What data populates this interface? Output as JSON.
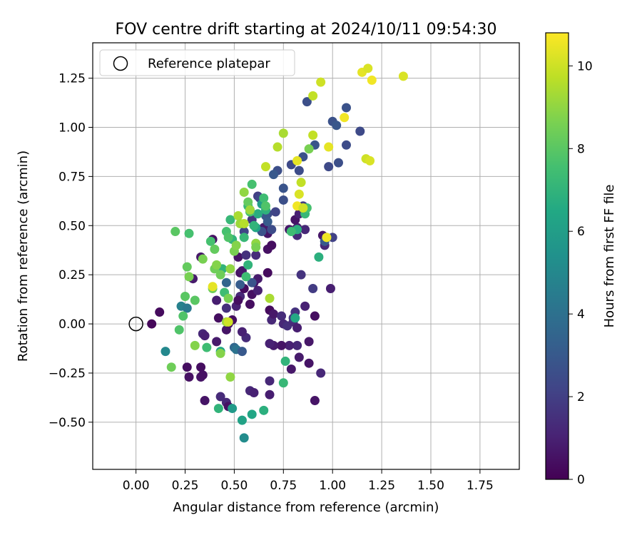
{
  "chart_data": {
    "type": "scatter",
    "title": "FOV centre drift starting at 2024/10/11 09:54:30",
    "xlabel": "Angular distance from reference (arcmin)",
    "ylabel": "Rotation from reference (arcmin)",
    "xlim": [
      -0.22,
      1.95
    ],
    "ylim": [
      -0.74,
      1.43
    ],
    "xticks": [
      "0.00",
      "0.25",
      "0.50",
      "0.75",
      "1.00",
      "1.25",
      "1.50",
      "1.75"
    ],
    "yticks": [
      "−0.50",
      "−0.25",
      "0.00",
      "0.25",
      "0.50",
      "0.75",
      "1.00",
      "1.25"
    ],
    "grid": true,
    "legend": {
      "placement": "top-left",
      "label": "Reference platepar"
    },
    "reference_point": {
      "x": 0.0,
      "y": 0.0
    },
    "colorbar": {
      "label": "Hours from first FF file",
      "range": [
        0,
        10.8
      ],
      "ticks": [
        "0",
        "2",
        "4",
        "6",
        "8",
        "10"
      ]
    },
    "points": [
      [
        0.08,
        0.0,
        0.2
      ],
      [
        0.12,
        0.06,
        0.3
      ],
      [
        0.26,
        -0.22,
        0.4
      ],
      [
        0.27,
        -0.27,
        0.5
      ],
      [
        0.33,
        -0.22,
        0.4
      ],
      [
        0.33,
        -0.27,
        0.6
      ],
      [
        0.34,
        -0.26,
        0.5
      ],
      [
        0.35,
        -0.39,
        0.6
      ],
      [
        0.34,
        -0.05,
        1.2
      ],
      [
        0.35,
        -0.06,
        1.0
      ],
      [
        0.33,
        0.34,
        0.7
      ],
      [
        0.29,
        0.23,
        0.8
      ],
      [
        0.39,
        0.43,
        0.5
      ],
      [
        0.41,
        0.12,
        0.9
      ],
      [
        0.41,
        -0.09,
        0.8
      ],
      [
        0.43,
        -0.37,
        1.3
      ],
      [
        0.46,
        -0.4,
        1.2
      ],
      [
        0.47,
        -0.42,
        0.5
      ],
      [
        0.42,
        0.03,
        0.4
      ],
      [
        0.46,
        0.08,
        1.5
      ],
      [
        0.46,
        -0.03,
        0.6
      ],
      [
        0.47,
        0.0,
        0.5
      ],
      [
        0.49,
        0.02,
        0.4
      ],
      [
        0.51,
        0.09,
        1.0
      ],
      [
        0.53,
        0.14,
        1.2
      ],
      [
        0.53,
        0.26,
        0.5
      ],
      [
        0.52,
        0.34,
        0.6
      ],
      [
        0.52,
        0.12,
        0.4
      ],
      [
        0.54,
        0.27,
        0.7
      ],
      [
        0.55,
        0.18,
        0.3
      ],
      [
        0.56,
        0.35,
        1.5
      ],
      [
        0.56,
        -0.07,
        1.3
      ],
      [
        0.54,
        -0.04,
        1.0
      ],
      [
        0.58,
        -0.34,
        1.2
      ],
      [
        0.6,
        -0.35,
        1.0
      ],
      [
        0.58,
        0.1,
        0.4
      ],
      [
        0.59,
        0.15,
        0.5
      ],
      [
        0.6,
        0.21,
        0.6
      ],
      [
        0.62,
        0.23,
        0.8
      ],
      [
        0.62,
        0.17,
        1.0
      ],
      [
        0.61,
        0.35,
        1.4
      ],
      [
        0.65,
        0.49,
        0.8
      ],
      [
        0.67,
        0.38,
        0.5
      ],
      [
        0.67,
        0.46,
        0.6
      ],
      [
        0.67,
        0.26,
        0.3
      ],
      [
        0.69,
        0.4,
        0.4
      ],
      [
        0.68,
        0.07,
        0.3
      ],
      [
        0.69,
        0.02,
        1.2
      ],
      [
        0.7,
        0.05,
        0.7
      ],
      [
        0.74,
        0.04,
        1.4
      ],
      [
        0.75,
        0.0,
        1.2
      ],
      [
        0.77,
        -0.01,
        1.5
      ],
      [
        0.8,
        0.01,
        1.3
      ],
      [
        0.81,
        0.06,
        1.6
      ],
      [
        0.8,
        0.03,
        1.8
      ],
      [
        0.82,
        -0.02,
        0.9
      ],
      [
        0.82,
        -0.11,
        1.2
      ],
      [
        0.83,
        -0.17,
        0.8
      ],
      [
        0.79,
        -0.23,
        0.7
      ],
      [
        0.78,
        -0.11,
        1.0
      ],
      [
        0.74,
        -0.11,
        0.6
      ],
      [
        0.7,
        -0.11,
        0.8
      ],
      [
        0.68,
        -0.1,
        1.0
      ],
      [
        0.68,
        -0.29,
        1.2
      ],
      [
        0.68,
        -0.36,
        0.9
      ],
      [
        0.86,
        0.09,
        1.0
      ],
      [
        0.86,
        0.48,
        1.2
      ],
      [
        0.84,
        0.25,
        1.6
      ],
      [
        0.9,
        0.18,
        1.9
      ],
      [
        0.95,
        0.45,
        0.7
      ],
      [
        0.96,
        0.4,
        1.2
      ],
      [
        0.99,
        0.18,
        0.9
      ],
      [
        0.91,
        0.04,
        0.4
      ],
      [
        0.88,
        -0.09,
        0.7
      ],
      [
        0.88,
        -0.2,
        0.6
      ],
      [
        0.94,
        -0.25,
        1.2
      ],
      [
        0.91,
        -0.39,
        0.6
      ],
      [
        0.78,
        0.48,
        0.7
      ],
      [
        0.82,
        0.49,
        0.9
      ],
      [
        0.82,
        0.45,
        1.3
      ],
      [
        0.81,
        0.53,
        0.6
      ],
      [
        0.83,
        0.56,
        1.0
      ],
      [
        0.85,
        0.6,
        2.0
      ],
      [
        0.79,
        0.81,
        2.4
      ],
      [
        0.83,
        0.78,
        2.5
      ],
      [
        0.85,
        0.85,
        2.7
      ],
      [
        0.87,
        1.13,
        2.6
      ],
      [
        0.91,
        0.91,
        2.8
      ],
      [
        0.98,
        0.8,
        2.4
      ],
      [
        1.0,
        0.44,
        2.1
      ],
      [
        0.96,
        0.42,
        3.0
      ],
      [
        1.0,
        1.03,
        2.7
      ],
      [
        1.02,
        1.01,
        2.9
      ],
      [
        1.03,
        0.82,
        2.6
      ],
      [
        1.07,
        0.91,
        2.5
      ],
      [
        1.07,
        1.1,
        2.7
      ],
      [
        1.14,
        0.98,
        2.4
      ],
      [
        0.72,
        0.78,
        2.6
      ],
      [
        0.7,
        0.76,
        3.0
      ],
      [
        0.75,
        0.69,
        2.8
      ],
      [
        0.75,
        0.63,
        2.6
      ],
      [
        0.71,
        0.57,
        2.2
      ],
      [
        0.67,
        0.56,
        2.4
      ],
      [
        0.66,
        0.55,
        2.9
      ],
      [
        0.67,
        0.52,
        3.1
      ],
      [
        0.64,
        0.47,
        2.7
      ],
      [
        0.69,
        0.48,
        2.5
      ],
      [
        0.62,
        0.65,
        2.0
      ],
      [
        0.63,
        0.64,
        2.3
      ],
      [
        0.58,
        0.58,
        1.9
      ],
      [
        0.55,
        0.47,
        2.2
      ],
      [
        0.59,
        0.53,
        1.7
      ],
      [
        0.46,
        0.21,
        3.5
      ],
      [
        0.53,
        0.2,
        3.1
      ],
      [
        0.59,
        0.21,
        2.8
      ],
      [
        0.5,
        -0.12,
        3.6
      ],
      [
        0.51,
        -0.13,
        4.1
      ],
      [
        0.54,
        -0.14,
        3.0
      ],
      [
        0.23,
        0.09,
        4.7
      ],
      [
        0.26,
        0.08,
        4.3
      ],
      [
        0.15,
        -0.14,
        5.0
      ],
      [
        0.43,
        -0.14,
        6.4
      ],
      [
        0.49,
        -0.43,
        5.8
      ],
      [
        0.54,
        -0.49,
        6.2
      ],
      [
        0.55,
        -0.58,
        5.2
      ],
      [
        0.59,
        -0.46,
        6.4
      ],
      [
        0.65,
        -0.44,
        6.8
      ],
      [
        0.75,
        -0.3,
        7.2
      ],
      [
        0.76,
        -0.19,
        7.0
      ],
      [
        0.81,
        0.03,
        6.5
      ],
      [
        0.93,
        0.34,
        6.8
      ],
      [
        0.97,
        0.44,
        6.2
      ],
      [
        0.82,
        0.48,
        6.8
      ],
      [
        0.86,
        0.56,
        7.2
      ],
      [
        0.87,
        0.59,
        7.6
      ],
      [
        0.79,
        0.47,
        7.4
      ],
      [
        0.61,
        0.49,
        6.3
      ],
      [
        0.6,
        0.5,
        7.0
      ],
      [
        0.62,
        0.56,
        6.7
      ],
      [
        0.64,
        0.61,
        6.0
      ],
      [
        0.66,
        0.58,
        6.9
      ],
      [
        0.65,
        0.64,
        7.4
      ],
      [
        0.66,
        0.6,
        7.8
      ],
      [
        0.58,
        0.57,
        7.6
      ],
      [
        0.57,
        0.6,
        7.2
      ],
      [
        0.59,
        0.71,
        7.6
      ],
      [
        0.57,
        0.62,
        8.2
      ],
      [
        0.55,
        0.44,
        7.2
      ],
      [
        0.57,
        0.3,
        7.0
      ],
      [
        0.56,
        0.24,
        7.4
      ],
      [
        0.49,
        0.43,
        7.0
      ],
      [
        0.48,
        0.53,
        7.2
      ],
      [
        0.46,
        0.47,
        7.6
      ],
      [
        0.47,
        0.44,
        7.8
      ],
      [
        0.45,
        0.16,
        7.4
      ],
      [
        0.44,
        0.28,
        7.0
      ],
      [
        0.38,
        0.42,
        7.6
      ],
      [
        0.4,
        0.38,
        8.2
      ],
      [
        0.36,
        -0.12,
        7.4
      ],
      [
        0.42,
        -0.43,
        7.0
      ],
      [
        0.22,
        -0.03,
        7.8
      ],
      [
        0.2,
        0.47,
        8.0
      ],
      [
        0.27,
        0.46,
        7.6
      ],
      [
        0.24,
        0.04,
        7.8
      ],
      [
        0.25,
        0.14,
        8.0
      ],
      [
        0.3,
        0.12,
        8.0
      ],
      [
        0.26,
        0.29,
        8.2
      ],
      [
        0.27,
        0.24,
        8.6
      ],
      [
        0.34,
        0.33,
        8.6
      ],
      [
        0.39,
        0.18,
        8.4
      ],
      [
        0.4,
        0.28,
        8.4
      ],
      [
        0.41,
        0.3,
        8.8
      ],
      [
        0.43,
        0.25,
        8.4
      ],
      [
        0.43,
        -0.15,
        8.8
      ],
      [
        0.3,
        -0.11,
        8.8
      ],
      [
        0.18,
        -0.22,
        8.4
      ],
      [
        0.46,
        0.01,
        9.2
      ],
      [
        0.48,
        -0.27,
        9.0
      ],
      [
        0.47,
        0.13,
        8.6
      ],
      [
        0.48,
        0.28,
        9.0
      ],
      [
        0.5,
        0.37,
        8.6
      ],
      [
        0.51,
        0.4,
        8.8
      ],
      [
        0.52,
        0.55,
        9.4
      ],
      [
        0.53,
        0.51,
        9.2
      ],
      [
        0.55,
        0.51,
        9.6
      ],
      [
        0.55,
        0.67,
        9.0
      ],
      [
        0.58,
        0.58,
        9.2
      ],
      [
        0.61,
        0.41,
        9.0
      ],
      [
        0.61,
        0.39,
        8.6
      ],
      [
        0.68,
        0.13,
        9.4
      ],
      [
        0.66,
        0.8,
        9.8
      ],
      [
        0.72,
        0.9,
        9.6
      ],
      [
        0.75,
        0.97,
        9.4
      ],
      [
        0.82,
        0.83,
        10.4
      ],
      [
        0.83,
        0.66,
        10.2
      ],
      [
        0.84,
        0.72,
        9.8
      ],
      [
        0.82,
        0.6,
        10.6
      ],
      [
        0.85,
        0.59,
        10.0
      ],
      [
        0.88,
        0.89,
        8.6
      ],
      [
        0.9,
        0.96,
        9.8
      ],
      [
        0.9,
        1.16,
        9.8
      ],
      [
        0.94,
        1.23,
        10.0
      ],
      [
        0.97,
        0.44,
        10.6
      ],
      [
        0.98,
        0.9,
        10.4
      ],
      [
        1.06,
        1.05,
        10.6
      ],
      [
        1.15,
        1.28,
        10.4
      ],
      [
        1.18,
        1.3,
        10.2
      ],
      [
        1.2,
        1.24,
        10.6
      ],
      [
        1.17,
        0.84,
        10.0
      ],
      [
        1.19,
        0.83,
        10.2
      ],
      [
        1.36,
        1.26,
        10.2
      ],
      [
        0.39,
        0.19,
        10.4
      ],
      [
        0.47,
        0.01,
        10.0
      ]
    ]
  }
}
